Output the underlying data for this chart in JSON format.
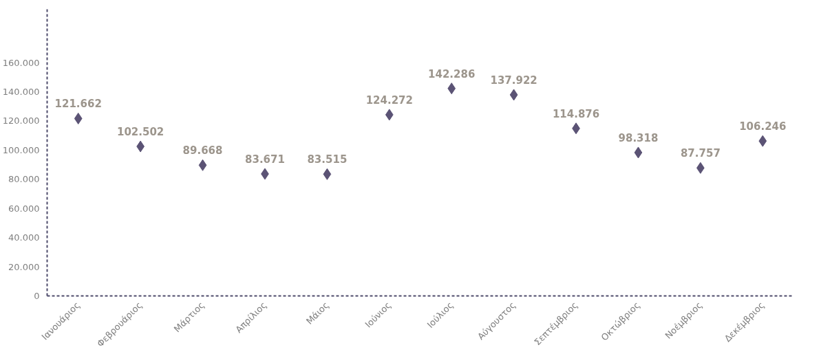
{
  "chart_data": {
    "type": "scatter",
    "marker": "diamond",
    "grid": false,
    "categories": [
      "Ιανουάριος",
      "Φεβρουάριος",
      "Μάρτιος",
      "Απρίλιος",
      "Μάιος",
      "Ιούνιος",
      "Ιούλιος",
      "Αύγουστος",
      "Σεπτέμβριος",
      "Οκτώβριος",
      "Νοέμβριος",
      "Δεκέμβριος"
    ],
    "series": [
      {
        "color": "#5b5375",
        "values": [
          121662,
          102502,
          89668,
          83671,
          83515,
          124272,
          142286,
          137922,
          114876,
          98318,
          87757,
          106246
        ],
        "value_labels": [
          "121.662",
          "102.502",
          "89.668",
          "83.671",
          "83.515",
          "124.272",
          "142.286",
          "137.922",
          "114.876",
          "98.318",
          "87.757",
          "106.246"
        ]
      }
    ],
    "ylim": [
      0,
      198000
    ],
    "yticks": [
      0,
      {
        "value": 20000,
        "label": "20.000"
      },
      {
        "value": 40000,
        "label": "40.000"
      },
      {
        "value": 60000,
        "label": "60.000"
      },
      {
        "value": 80000,
        "label": "80.000"
      },
      {
        "value": 100000,
        "label": "100.000"
      },
      {
        "value": 120000,
        "label": "120.000"
      },
      {
        "value": 140000,
        "label": "140.000"
      },
      {
        "value": 160000,
        "label": "160.000"
      }
    ]
  }
}
